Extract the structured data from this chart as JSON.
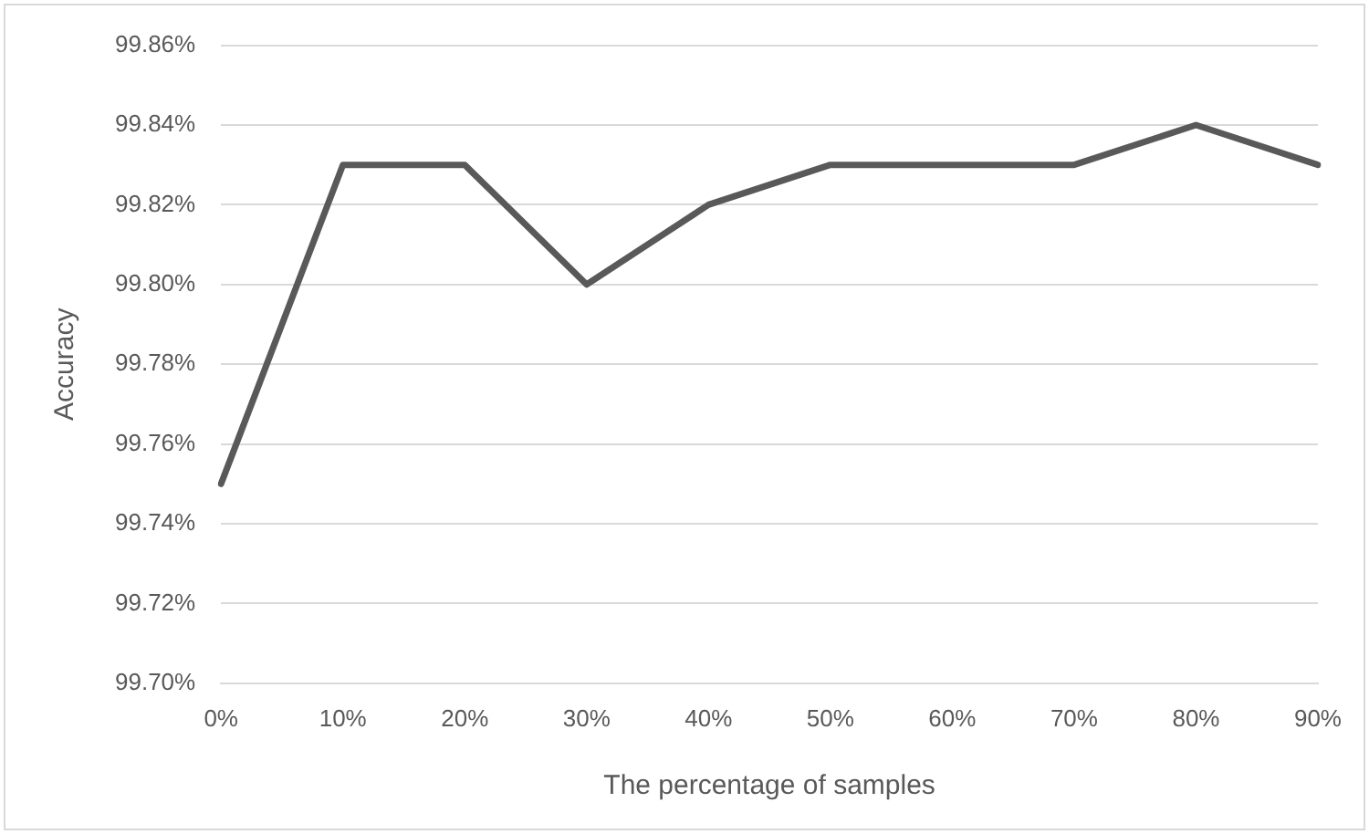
{
  "chart_data": {
    "type": "line",
    "xlabel": "The percentage of samples",
    "ylabel": "Accuracy",
    "categories": [
      "0%",
      "10%",
      "20%",
      "30%",
      "40%",
      "50%",
      "60%",
      "70%",
      "80%",
      "90%"
    ],
    "series": [
      {
        "color": "#595959",
        "values": [
          99.75,
          99.83,
          99.83,
          99.8,
          99.82,
          99.83,
          99.83,
          99.83,
          99.84,
          99.83
        ]
      }
    ],
    "ylim": [
      99.7,
      99.86
    ],
    "yticks": [
      {
        "value": 99.7,
        "label": "99.70%"
      },
      {
        "value": 99.72,
        "label": "99.72%"
      },
      {
        "value": 99.74,
        "label": "99.74%"
      },
      {
        "value": 99.76,
        "label": "99.76%"
      },
      {
        "value": 99.78,
        "label": "99.78%"
      },
      {
        "value": 99.8,
        "label": "99.80%"
      },
      {
        "value": 99.82,
        "label": "99.82%"
      },
      {
        "value": 99.84,
        "label": "99.84%"
      },
      {
        "value": 99.86,
        "label": "99.86%"
      }
    ],
    "grid": "y",
    "legend": false,
    "marker": "none",
    "line_style": "solid"
  }
}
